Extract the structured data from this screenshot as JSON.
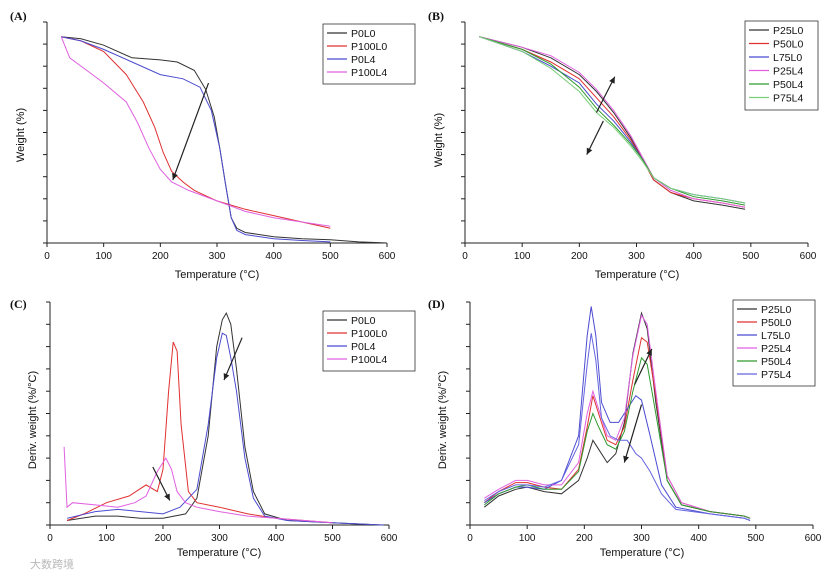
{
  "watermark": "大数跨境",
  "chart_data": [
    {
      "id": "A",
      "type": "line",
      "panel_label": "(A)",
      "xlabel": "Temperature (°C)",
      "ylabel": "Weight (%)",
      "xlim": [
        0,
        600
      ],
      "ylim": [
        0,
        105
      ],
      "xticks": [
        0,
        100,
        200,
        300,
        400,
        500,
        600
      ],
      "legend_loc": "top-right",
      "series": [
        {
          "name": "P0L0",
          "color": "#333333",
          "x": [
            25,
            60,
            100,
            150,
            200,
            230,
            260,
            280,
            295,
            305,
            315,
            325,
            335,
            350,
            400,
            450,
            500,
            550,
            600
          ],
          "y": [
            98,
            97,
            94,
            88,
            87,
            86,
            82,
            73,
            60,
            45,
            28,
            12,
            7,
            5,
            3,
            2,
            1.5,
            0.5,
            0
          ]
        },
        {
          "name": "P100L0",
          "color": "#e03030",
          "x": [
            25,
            60,
            100,
            140,
            170,
            190,
            205,
            220,
            240,
            260,
            300,
            350,
            400,
            450,
            500
          ],
          "y": [
            98,
            96,
            91,
            80,
            67,
            55,
            43,
            34,
            29,
            25,
            20,
            16,
            13,
            10,
            7
          ]
        },
        {
          "name": "P0L4",
          "color": "#4b4bd0",
          "x": [
            25,
            60,
            100,
            150,
            200,
            240,
            270,
            290,
            305,
            315,
            325,
            335,
            350,
            400,
            450,
            500
          ],
          "y": [
            98,
            96,
            92,
            86,
            80,
            78,
            74,
            63,
            45,
            28,
            12,
            6,
            4,
            2,
            1.2,
            0.5
          ]
        },
        {
          "name": "P100L4",
          "color": "#e060e0",
          "x": [
            25,
            40,
            70,
            100,
            140,
            160,
            180,
            200,
            220,
            250,
            300,
            350,
            400,
            450,
            500
          ],
          "y": [
            98,
            88,
            82,
            76,
            67,
            57,
            45,
            35,
            29,
            25,
            20,
            15,
            12,
            10,
            8
          ]
        }
      ],
      "arrows": [
        {
          "from": [
            285,
            76
          ],
          "to": [
            222,
            30
          ]
        }
      ]
    },
    {
      "id": "B",
      "type": "line",
      "panel_label": "(B)",
      "xlabel": "Temperature (°C)",
      "ylabel": "Weight (%)",
      "xlim": [
        0,
        600
      ],
      "ylim": [
        0,
        105
      ],
      "xticks": [
        0,
        100,
        200,
        300,
        400,
        500,
        600
      ],
      "legend_loc": "top-right",
      "series": [
        {
          "name": "P25L0",
          "color": "#333333",
          "x": [
            25,
            100,
            150,
            200,
            230,
            260,
            290,
            310,
            330,
            360,
            400,
            450,
            490
          ],
          "y": [
            98,
            93,
            88,
            80,
            72,
            62,
            50,
            40,
            30,
            24,
            20,
            18,
            16
          ]
        },
        {
          "name": "P50L0",
          "color": "#e03030",
          "x": [
            25,
            100,
            150,
            200,
            230,
            260,
            290,
            310,
            330,
            360,
            400,
            450,
            490
          ],
          "y": [
            98,
            92,
            86,
            78,
            69,
            60,
            49,
            40,
            30,
            24,
            21,
            19,
            17
          ]
        },
        {
          "name": "L75L0",
          "color": "#4b4bd0",
          "x": [
            25,
            100,
            150,
            200,
            230,
            260,
            290,
            310,
            330,
            360,
            400,
            450,
            490
          ],
          "y": [
            98,
            91,
            84,
            76,
            66,
            58,
            48,
            40,
            31,
            26,
            23,
            21,
            19
          ]
        },
        {
          "name": "P25L4",
          "color": "#e060e0",
          "x": [
            25,
            100,
            150,
            200,
            230,
            260,
            290,
            310,
            330,
            360,
            400,
            450,
            490
          ],
          "y": [
            98,
            93,
            89,
            81,
            73,
            63,
            51,
            41,
            31,
            25,
            21,
            19,
            17
          ]
        },
        {
          "name": "P50L4",
          "color": "#2e9a2e",
          "x": [
            25,
            100,
            150,
            200,
            230,
            260,
            290,
            310,
            330,
            360,
            400,
            450,
            490
          ],
          "y": [
            98,
            92,
            85,
            74,
            64,
            56,
            47,
            40,
            31,
            26,
            22,
            20,
            18
          ]
        },
        {
          "name": "P75L4",
          "color": "#7ad07a",
          "x": [
            25,
            100,
            150,
            200,
            230,
            260,
            290,
            310,
            330,
            360,
            400,
            450,
            490
          ],
          "y": [
            98,
            91,
            83,
            72,
            62,
            55,
            46,
            39,
            31,
            26,
            23,
            21,
            19
          ]
        }
      ],
      "arrows": [
        {
          "from": [
            230,
            62
          ],
          "to": [
            262,
            79
          ]
        },
        {
          "from": [
            242,
            58
          ],
          "to": [
            213,
            42
          ]
        }
      ]
    },
    {
      "id": "C",
      "type": "line",
      "panel_label": "(C)",
      "xlabel": "Temperature (°C)",
      "ylabel": "Deriv. weight (%/°C)",
      "xlim": [
        0,
        600
      ],
      "ylim": [
        0,
        100
      ],
      "xticks": [
        0,
        100,
        200,
        300,
        400,
        500,
        600
      ],
      "legend_loc": "top-right",
      "series": [
        {
          "name": "P0L0",
          "color": "#333333",
          "x": [
            30,
            80,
            120,
            160,
            200,
            240,
            260,
            280,
            295,
            305,
            312,
            320,
            330,
            345,
            360,
            380,
            420,
            500,
            590
          ],
          "y": [
            2,
            4,
            4,
            3,
            3,
            5,
            12,
            40,
            80,
            92,
            95,
            90,
            70,
            35,
            15,
            5,
            2,
            1,
            0
          ]
        },
        {
          "name": "P100L0",
          "color": "#e03030",
          "x": [
            30,
            60,
            100,
            140,
            170,
            190,
            200,
            210,
            218,
            225,
            232,
            245,
            260,
            300,
            350,
            400,
            450,
            500
          ],
          "y": [
            2,
            5,
            10,
            13,
            18,
            15,
            25,
            60,
            82,
            78,
            45,
            15,
            10,
            8,
            5,
            3,
            2,
            1
          ]
        },
        {
          "name": "P0L4",
          "color": "#4b4bd0",
          "x": [
            30,
            80,
            120,
            160,
            200,
            230,
            260,
            280,
            295,
            305,
            312,
            320,
            330,
            345,
            360,
            380,
            420,
            500,
            590
          ],
          "y": [
            3,
            6,
            7,
            6,
            5,
            8,
            16,
            45,
            75,
            86,
            85,
            75,
            60,
            30,
            12,
            4,
            2,
            1,
            0
          ]
        },
        {
          "name": "P100L4",
          "color": "#e060e0",
          "x": [
            25,
            30,
            40,
            80,
            120,
            150,
            170,
            190,
            205,
            215,
            225,
            240,
            260,
            300,
            350,
            400,
            450,
            500
          ],
          "y": [
            35,
            8,
            10,
            9,
            8,
            10,
            13,
            24,
            30,
            25,
            15,
            10,
            8,
            6,
            4,
            3,
            2,
            1
          ]
        }
      ],
      "arrows": [
        {
          "from": [
            182,
            26
          ],
          "to": [
            212,
            11
          ]
        },
        {
          "from": [
            340,
            84
          ],
          "to": [
            308,
            65
          ]
        }
      ]
    },
    {
      "id": "D",
      "type": "line",
      "panel_label": "(D)",
      "xlabel": "Temperature (°C)",
      "ylabel": "Deriv. weight (%/°C)",
      "xlim": [
        0,
        600
      ],
      "ylim": [
        0,
        100
      ],
      "xticks": [
        0,
        100,
        200,
        300,
        400,
        500,
        600
      ],
      "legend_loc": "top-right",
      "series": [
        {
          "name": "P25L0",
          "color": "#333333",
          "x": [
            25,
            50,
            80,
            100,
            130,
            160,
            190,
            205,
            215,
            225,
            240,
            255,
            270,
            285,
            300,
            310,
            325,
            345,
            370,
            420,
            480,
            490
          ],
          "y": [
            8,
            13,
            16,
            17,
            15,
            14,
            20,
            30,
            38,
            34,
            28,
            32,
            46,
            77,
            95,
            88,
            55,
            20,
            9,
            6,
            4,
            3
          ]
        },
        {
          "name": "P50L0",
          "color": "#e03030",
          "x": [
            25,
            50,
            80,
            100,
            130,
            160,
            190,
            205,
            215,
            225,
            240,
            255,
            270,
            285,
            300,
            310,
            325,
            345,
            370,
            420,
            480,
            490
          ],
          "y": [
            10,
            15,
            19,
            19,
            17,
            16,
            25,
            44,
            58,
            50,
            38,
            36,
            44,
            65,
            84,
            82,
            58,
            22,
            10,
            6,
            4,
            3
          ]
        },
        {
          "name": "L75L0",
          "color": "#4b4bd0",
          "x": [
            25,
            50,
            80,
            100,
            130,
            160,
            190,
            205,
            212,
            220,
            230,
            245,
            260,
            275,
            290,
            300,
            315,
            335,
            360,
            420,
            480,
            490
          ],
          "y": [
            10,
            14,
            17,
            17,
            16,
            20,
            40,
            85,
            98,
            85,
            55,
            46,
            46,
            52,
            58,
            56,
            40,
            18,
            8,
            5,
            3,
            2
          ]
        },
        {
          "name": "P25L4",
          "color": "#e060e0",
          "x": [
            25,
            50,
            80,
            100,
            130,
            160,
            190,
            205,
            215,
            225,
            240,
            255,
            270,
            285,
            300,
            310,
            325,
            345,
            370,
            420,
            480,
            490
          ],
          "y": [
            12,
            16,
            20,
            20,
            18,
            18,
            28,
            50,
            60,
            52,
            40,
            38,
            48,
            76,
            94,
            90,
            60,
            22,
            10,
            6,
            4,
            3
          ]
        },
        {
          "name": "P50L4",
          "color": "#2e9a2e",
          "x": [
            25,
            50,
            80,
            100,
            130,
            160,
            190,
            205,
            215,
            225,
            240,
            255,
            270,
            285,
            300,
            310,
            325,
            345,
            370,
            420,
            480,
            490
          ],
          "y": [
            9,
            14,
            17,
            18,
            16,
            16,
            24,
            42,
            50,
            44,
            36,
            34,
            42,
            60,
            75,
            72,
            50,
            20,
            9,
            6,
            4,
            3
          ]
        },
        {
          "name": "P75L4",
          "color": "#6464e0",
          "x": [
            25,
            50,
            80,
            100,
            130,
            160,
            190,
            205,
            212,
            220,
            230,
            245,
            260,
            275,
            290,
            300,
            315,
            335,
            360,
            420,
            480,
            490
          ],
          "y": [
            11,
            15,
            18,
            18,
            17,
            20,
            36,
            72,
            86,
            74,
            48,
            40,
            38,
            38,
            32,
            30,
            24,
            14,
            7,
            5,
            3,
            2
          ]
        }
      ],
      "arrows": [
        {
          "from": [
            288,
            63
          ],
          "to": [
            318,
            79
          ]
        },
        {
          "from": [
            300,
            54
          ],
          "to": [
            270,
            28
          ]
        }
      ]
    }
  ]
}
